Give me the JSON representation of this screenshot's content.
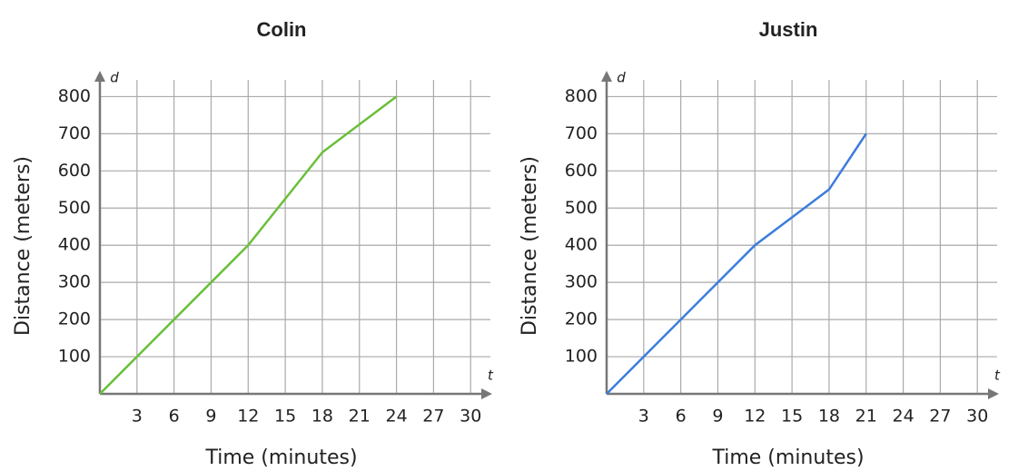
{
  "chart_data": [
    {
      "type": "line",
      "title": "Colin",
      "x_label": "Time (minutes)",
      "y_label": "Distance (meters)",
      "x_symbol": "t",
      "y_symbol": "d",
      "series": [
        {
          "name": "Colin",
          "color": "#6abf3a",
          "x": [
            0,
            12,
            18,
            24
          ],
          "values": [
            0,
            400,
            650,
            800
          ]
        }
      ],
      "xlim": [
        0,
        31.6
      ],
      "ylim": [
        0,
        845
      ],
      "xticks": [
        3,
        6,
        9,
        12,
        15,
        18,
        21,
        24,
        27,
        30
      ],
      "yticks": [
        100,
        200,
        300,
        400,
        500,
        600,
        700,
        800
      ],
      "grid": true
    },
    {
      "type": "line",
      "title": "Justin",
      "x_label": "Time (minutes)",
      "y_label": "Distance (meters)",
      "x_symbol": "t",
      "y_symbol": "d",
      "series": [
        {
          "name": "Justin",
          "color": "#3b7ddd",
          "x": [
            0,
            12,
            18,
            21
          ],
          "values": [
            0,
            400,
            550,
            700
          ]
        }
      ],
      "xlim": [
        0,
        31.6
      ],
      "ylim": [
        0,
        845
      ],
      "xticks": [
        3,
        6,
        9,
        12,
        15,
        18,
        21,
        24,
        27,
        30
      ],
      "yticks": [
        100,
        200,
        300,
        400,
        500,
        600,
        700,
        800
      ],
      "grid": true
    }
  ]
}
